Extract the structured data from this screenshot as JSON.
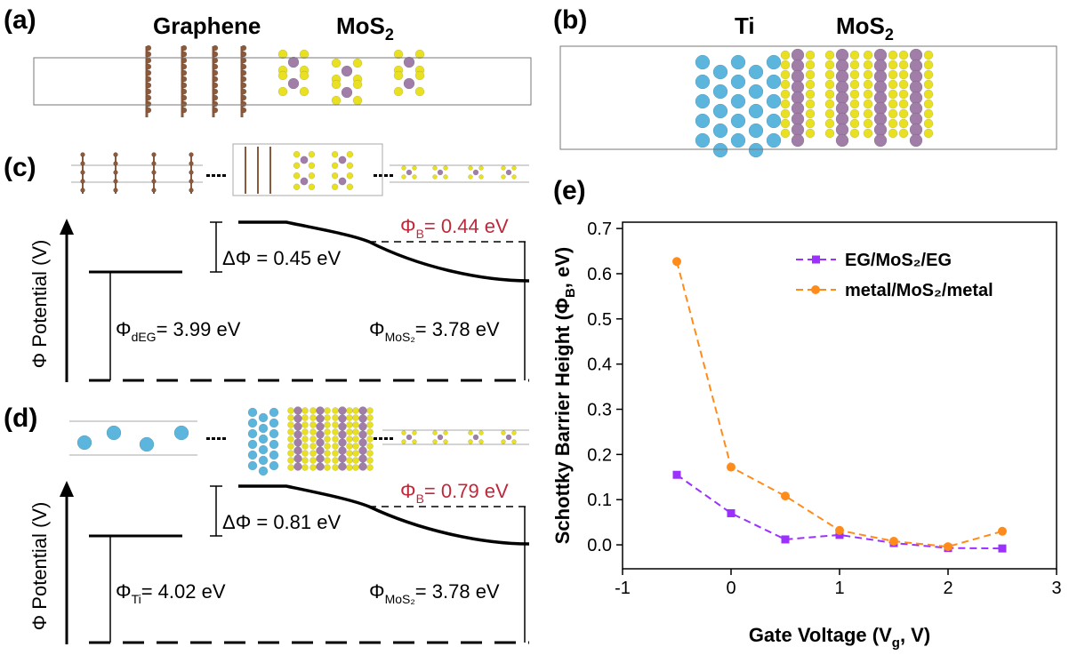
{
  "panels": {
    "a": {
      "label": "(a)",
      "graphene": "Graphene",
      "mos2": {
        "base": "MoS",
        "sub": "2"
      }
    },
    "b": {
      "label": "(b)",
      "ti": "Ti",
      "mos2": {
        "base": "MoS",
        "sub": "2"
      }
    },
    "c": {
      "label": "(c)",
      "axis_label": "Φ Potential (V)",
      "delta_phi": "ΔΦ = 0.45 eV",
      "barrier": {
        "symbol": "Φ",
        "sub": "B",
        "rest": "= 0.44 eV"
      },
      "left": {
        "symbol": "Φ",
        "sub": "dEG",
        "rest": "= 3.99 eV"
      },
      "right": {
        "symbol": "Φ",
        "sub": "MoS₂",
        "rest": "= 3.78 eV"
      }
    },
    "d": {
      "label": "(d)",
      "axis_label": "Φ Potential (V)",
      "delta_phi": "ΔΦ = 0.81 eV",
      "barrier": {
        "symbol": "Φ",
        "sub": "B",
        "rest": "= 0.79 eV"
      },
      "left": {
        "symbol": "Φ",
        "sub": "Ti",
        "rest": "= 4.02 eV"
      },
      "right": {
        "symbol": "Φ",
        "sub": "MoS₂",
        "rest": "= 3.78 eV"
      }
    },
    "e": {
      "label": "(e)"
    }
  },
  "chart_data": {
    "type": "line",
    "x_label": {
      "pre": "Gate Voltage (V",
      "sub": "g",
      "post": ", V)"
    },
    "y_label": {
      "pre": "Schottky Barrier Height (Φ",
      "sub": "B",
      "post": ", eV)"
    },
    "x": [
      -0.5,
      0,
      0.5,
      1,
      1.5,
      2,
      2.5
    ],
    "series": [
      {
        "name": "EG/MoS₂/EG",
        "color": "#9b30ff",
        "marker": "square",
        "values": [
          0.155,
          0.07,
          0.012,
          0.022,
          0.004,
          -0.007,
          -0.008
        ]
      },
      {
        "name": "metal/MoS₂/metal",
        "color": "#ff8c1a",
        "marker": "circle",
        "values": [
          0.627,
          0.172,
          0.108,
          0.032,
          0.008,
          -0.004,
          0.03
        ]
      }
    ],
    "xlim": [
      -1,
      3
    ],
    "xticks": [
      -1,
      0,
      1,
      2,
      3
    ],
    "ylim": [
      -0.053,
      0.714
    ],
    "yticks": [
      {
        "value": 0,
        "label": "0.0"
      },
      0.1,
      0.2,
      0.3,
      0.4,
      0.5,
      0.6,
      0.7
    ],
    "legend": "upper-right"
  }
}
